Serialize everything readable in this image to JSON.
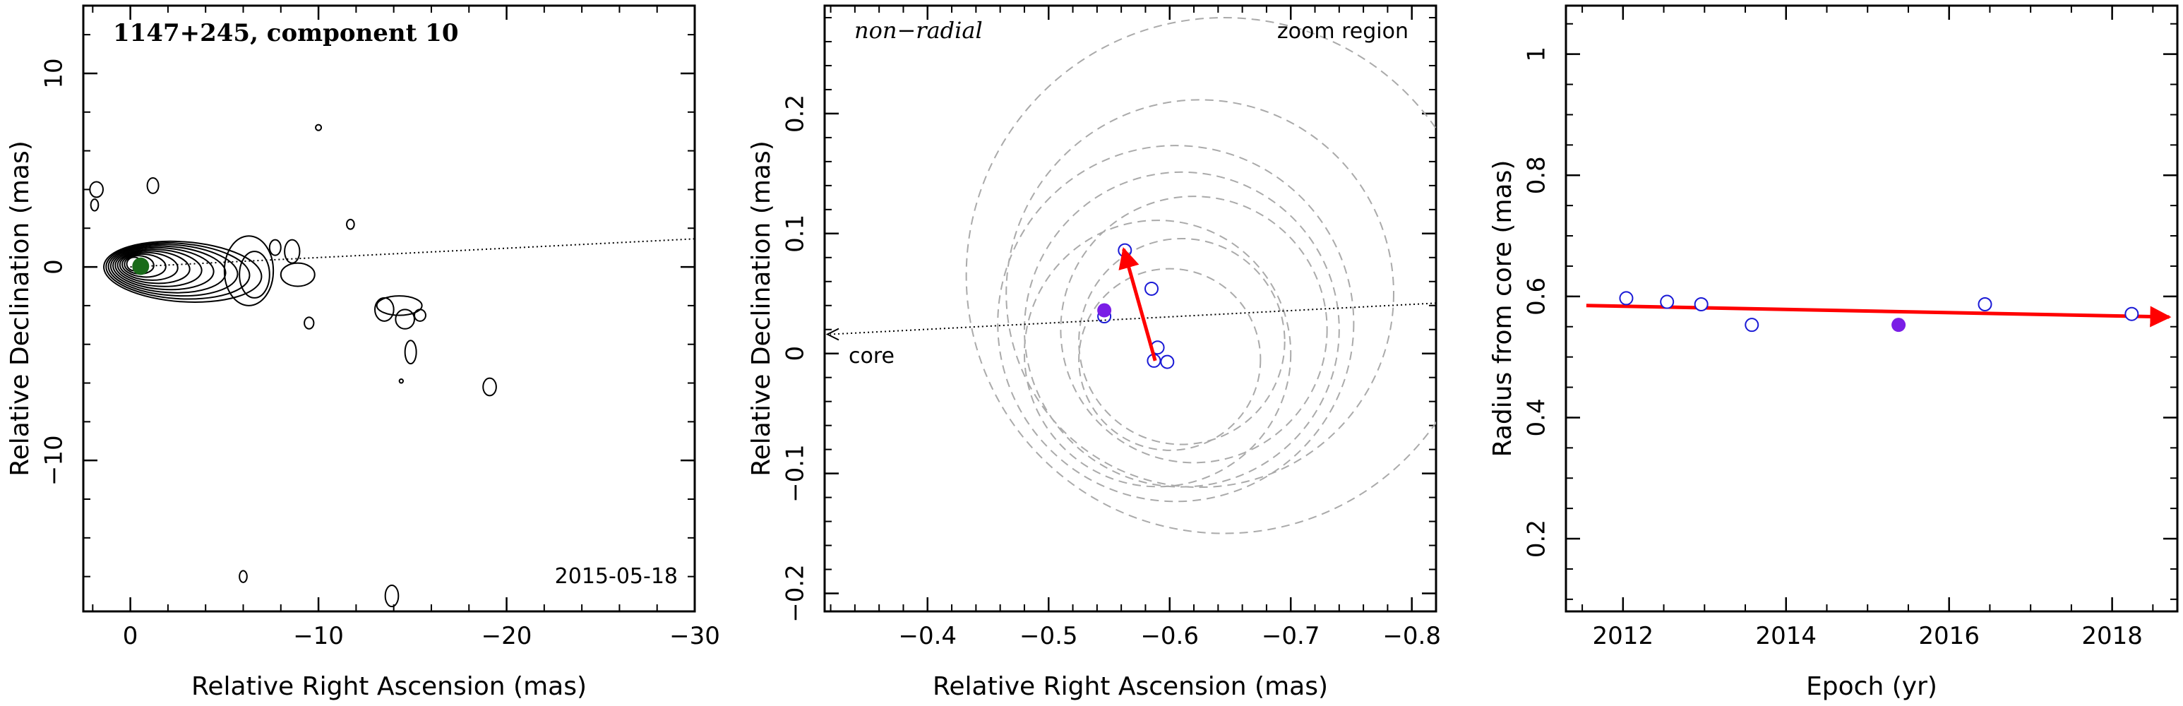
{
  "chart_data": [
    {
      "type": "contour",
      "title": "1147+245, component 10",
      "date": "2015-05-18",
      "xlabel": "Relative Right Ascension (mas)",
      "ylabel": "Relative Declination (mas)",
      "xlim": [
        2.5,
        -30
      ],
      "ylim": [
        -17.8,
        13.5
      ],
      "xticks": [
        0,
        -10,
        -20,
        -30
      ],
      "xtick_labels": [
        "0",
        "−10",
        "−20",
        "−30"
      ],
      "yticks": [
        10,
        0,
        -10
      ],
      "ytick_labels": [
        "10",
        "0",
        "−10"
      ],
      "component": {
        "x": -0.55,
        "y": 0.035
      },
      "trajectory_line": {
        "from": [
          0,
          0
        ],
        "to": [
          -30,
          1.45
        ],
        "style": "dotted"
      },
      "colors": {
        "component": "#1a6b1a",
        "contour": "#000000"
      }
    },
    {
      "type": "scatter",
      "title": "",
      "annotation_left": "non−radial",
      "annotation_right": "zoom region",
      "core_label": "core",
      "xlabel": "Relative Right Ascension (mas)",
      "ylabel": "Relative Declination (mas)",
      "xlim": [
        -0.315,
        -0.82
      ],
      "ylim": [
        -0.215,
        0.29
      ],
      "xticks": [
        -0.4,
        -0.5,
        -0.6,
        -0.7,
        -0.8
      ],
      "xtick_labels": [
        "−0.4",
        "−0.5",
        "−0.6",
        "−0.7",
        "−0.8"
      ],
      "yticks": [
        0.2,
        0.1,
        0,
        -0.1,
        -0.2
      ],
      "ytick_labels": [
        "0.2",
        "0.1",
        "0",
        "−0.1",
        "−0.2"
      ],
      "points": [
        {
          "x": -0.563,
          "y": 0.086,
          "filled": false
        },
        {
          "x": -0.585,
          "y": 0.054,
          "filled": false
        },
        {
          "x": -0.546,
          "y": 0.031,
          "filled": false
        },
        {
          "x": -0.59,
          "y": 0.005,
          "filled": false
        },
        {
          "x": -0.587,
          "y": -0.006,
          "filled": false
        },
        {
          "x": -0.598,
          "y": -0.007,
          "filled": false
        },
        {
          "x": -0.546,
          "y": 0.036,
          "filled": true
        }
      ],
      "beam_circles": [
        {
          "x": -0.645,
          "y": 0.065,
          "r": 0.213
        },
        {
          "x": -0.625,
          "y": 0.05,
          "r": 0.16
        },
        {
          "x": -0.605,
          "y": 0.025,
          "r": 0.147
        },
        {
          "x": -0.61,
          "y": 0.02,
          "r": 0.13
        },
        {
          "x": -0.62,
          "y": 0.02,
          "r": 0.11
        },
        {
          "x": -0.59,
          "y": 0.0,
          "r": 0.11
        },
        {
          "x": -0.61,
          "y": 0.01,
          "r": 0.085
        },
        {
          "x": -0.6,
          "y": -0.005,
          "r": 0.075
        }
      ],
      "arrow": {
        "from": [
          -0.588,
          -0.006
        ],
        "to": [
          -0.562,
          0.087
        ]
      },
      "core_line": {
        "from": [
          -0.82,
          0.042
        ],
        "to": [
          -0.315,
          0.016
        ]
      },
      "colors": {
        "points": "#1a1ad6",
        "filled": "#7a1ee6",
        "arrow": "#ff0000",
        "circles": "#aaaaaa"
      }
    },
    {
      "type": "scatter",
      "xlabel": "Epoch (yr)",
      "ylabel": "Radius from core (mas)",
      "xlim": [
        2011.3,
        2018.8
      ],
      "ylim": [
        0.08,
        1.08
      ],
      "xticks": [
        2012,
        2014,
        2016,
        2018
      ],
      "xtick_labels": [
        "2012",
        "2014",
        "2016",
        "2018"
      ],
      "yticks": [
        1,
        0.8,
        0.6,
        0.4,
        0.2
      ],
      "ytick_labels": [
        "1",
        "0.8",
        "0.6",
        "0.4",
        "0.2"
      ],
      "points": [
        {
          "x": 2012.04,
          "y": 0.597,
          "filled": false
        },
        {
          "x": 2012.54,
          "y": 0.591,
          "filled": false
        },
        {
          "x": 2012.96,
          "y": 0.587,
          "filled": false
        },
        {
          "x": 2013.58,
          "y": 0.553,
          "filled": false
        },
        {
          "x": 2015.38,
          "y": 0.553,
          "filled": true
        },
        {
          "x": 2016.44,
          "y": 0.587,
          "filled": false
        },
        {
          "x": 2018.24,
          "y": 0.571,
          "filled": false
        }
      ],
      "fit_line": {
        "from": [
          2011.55,
          0.585
        ],
        "to": [
          2018.7,
          0.566
        ]
      },
      "colors": {
        "points": "#1a1ad6",
        "filled": "#7a1ee6",
        "fit": "#ff0000"
      }
    }
  ]
}
